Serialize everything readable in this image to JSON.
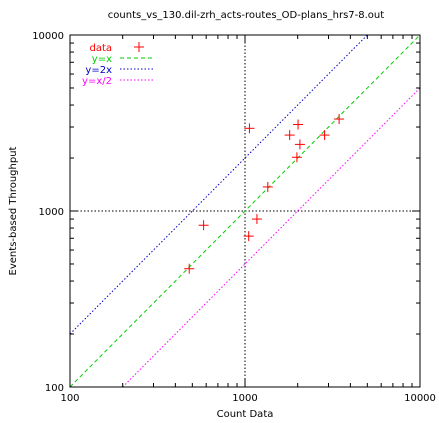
{
  "chart_data": {
    "type": "scatter",
    "title": "counts_vs_130.dil-zrh_acts-routes_OD-plans_hrs7-8.out",
    "xlabel": "Count Data",
    "ylabel": "Events-based Throughput",
    "xscale": "log",
    "yscale": "log",
    "xlim": [
      100,
      10000
    ],
    "ylim": [
      100,
      10000
    ],
    "x_ticks": [
      "100",
      "1000",
      "10000"
    ],
    "y_ticks": [
      "100",
      "1000",
      "10000"
    ],
    "reference_lines": {
      "x": 1000,
      "y": 1000,
      "style": "dotted",
      "color": "#000000"
    },
    "legend_position": "top-left",
    "series": [
      {
        "name": "data",
        "kind": "points",
        "marker": "plus",
        "color": "#ff0000",
        "points": [
          [
            480,
            470
          ],
          [
            580,
            830
          ],
          [
            1050,
            720
          ],
          [
            1060,
            2950
          ],
          [
            1170,
            900
          ],
          [
            1350,
            1370
          ],
          [
            1800,
            2700
          ],
          [
            1980,
            2020
          ],
          [
            2010,
            3100
          ],
          [
            2060,
            2390
          ],
          [
            2850,
            2700
          ],
          [
            3450,
            3330
          ]
        ]
      },
      {
        "name": "y=x",
        "kind": "line",
        "factor": 1,
        "style": "dashed",
        "color": "#00cc00"
      },
      {
        "name": "y=2x",
        "kind": "line",
        "factor": 2,
        "style": "dotted",
        "color": "#0000cc"
      },
      {
        "name": "y=x/2",
        "kind": "line",
        "factor": 0.5,
        "style": "dotted",
        "color": "#ff00ff"
      }
    ]
  }
}
